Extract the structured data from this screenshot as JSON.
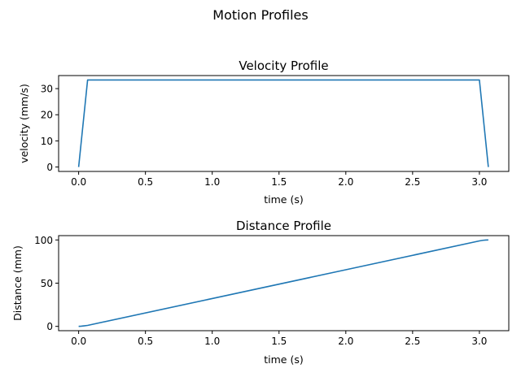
{
  "suptitle": "Motion Profiles",
  "colors": {
    "line": "#1f77b4"
  },
  "chart_data": [
    {
      "type": "line",
      "title": "Velocity Profile",
      "xlabel": "time (s)",
      "ylabel": "velocity (mm/s)",
      "xlim": [
        -0.15,
        3.22
      ],
      "ylim": [
        -1.7,
        35.0
      ],
      "xticks": [
        0.0,
        0.5,
        1.0,
        1.5,
        2.0,
        2.5,
        3.0
      ],
      "xtick_labels": [
        "0.0",
        "0.5",
        "1.0",
        "1.5",
        "2.0",
        "2.5",
        "3.0"
      ],
      "yticks": [
        0,
        10,
        20,
        30
      ],
      "ytick_labels": [
        "0",
        "10",
        "20",
        "30"
      ],
      "grid": false,
      "series": [
        {
          "x": [
            0.0,
            0.067,
            3.0,
            3.067
          ],
          "y": [
            0.0,
            33.3,
            33.3,
            0.0
          ]
        }
      ]
    },
    {
      "type": "line",
      "title": "Distance Profile",
      "xlabel": "time (s)",
      "ylabel": "Distance (mm)",
      "xlim": [
        -0.15,
        3.22
      ],
      "ylim": [
        -5.0,
        105.0
      ],
      "xticks": [
        0.0,
        0.5,
        1.0,
        1.5,
        2.0,
        2.5,
        3.0
      ],
      "xtick_labels": [
        "0.0",
        "0.5",
        "1.0",
        "1.5",
        "2.0",
        "2.5",
        "3.0"
      ],
      "yticks": [
        0,
        50,
        100
      ],
      "ytick_labels": [
        "0",
        "50",
        "100"
      ],
      "grid": false,
      "series": [
        {
          "x": [
            0.0,
            0.02,
            0.04,
            0.067,
            1.0,
            2.0,
            3.0,
            3.027,
            3.047,
            3.067
          ],
          "y": [
            0.0,
            0.2,
            0.6,
            1.1,
            32.2,
            65.5,
            98.9,
            99.6,
            99.9,
            100.0
          ]
        }
      ]
    }
  ]
}
